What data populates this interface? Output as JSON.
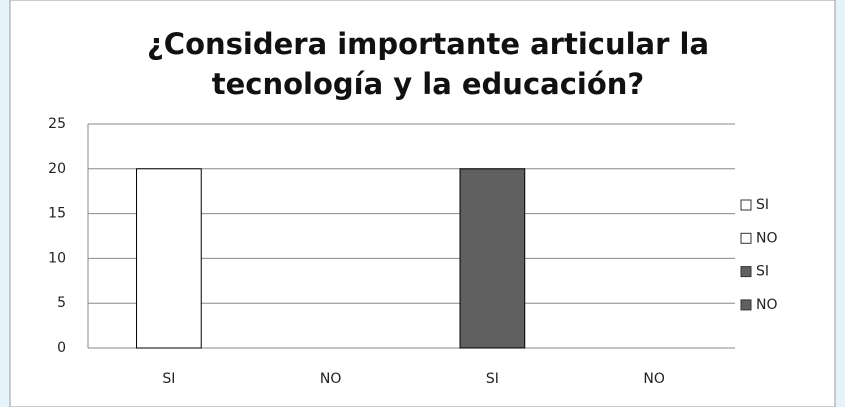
{
  "chart_data": {
    "type": "bar",
    "title": [
      "¿Considera importante articular  la",
      "tecnología y  la educación?"
    ],
    "categories": [
      "SI",
      "NO",
      "SI",
      "NO"
    ],
    "series": [
      {
        "name": "SI",
        "color": "#ffffff",
        "values": [
          20,
          null,
          null,
          null
        ]
      },
      {
        "name": "NO",
        "color": "#ffffff",
        "values": [
          null,
          0,
          null,
          null
        ]
      },
      {
        "name": "SI",
        "color": "#606060",
        "values": [
          null,
          null,
          20,
          null
        ]
      },
      {
        "name": "NO",
        "color": "#606060",
        "values": [
          null,
          null,
          null,
          0
        ]
      }
    ],
    "ylim": [
      0,
      25
    ],
    "yticks": [
      0,
      5,
      10,
      15,
      20,
      25
    ],
    "grid": true,
    "legend": "right"
  }
}
